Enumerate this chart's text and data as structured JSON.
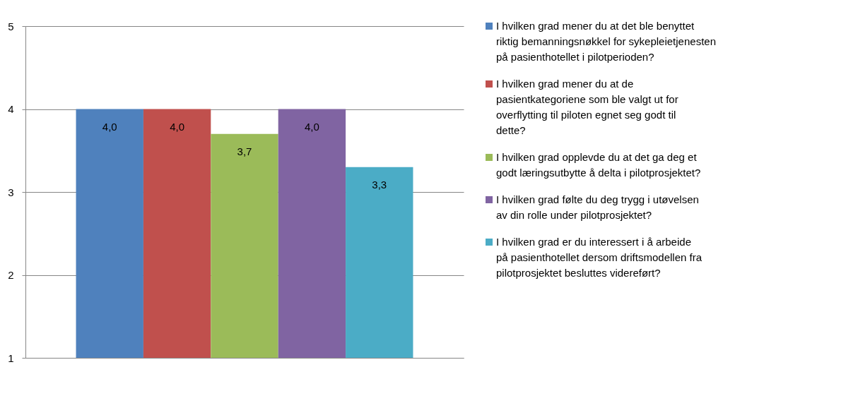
{
  "chart_data": {
    "type": "bar",
    "categories": [
      null
    ],
    "series": [
      {
        "name": "I hvilken grad mener du at det ble benyttet riktig bemanningsnøkkel for sykepleietjenesten på pasienthotellet i pilotperioden?",
        "color": "#4f81bd",
        "values": [
          4.0
        ],
        "value_labels": [
          "4,0"
        ]
      },
      {
        "name": "I hvilken grad mener du at de pasientkategoriene som ble valgt ut for overflytting til piloten egnet seg godt til dette?",
        "color": "#c0504d",
        "values": [
          4.0
        ],
        "value_labels": [
          "4,0"
        ]
      },
      {
        "name": "I hvilken grad opplevde du at det ga deg et godt læringsutbytte å delta i pilotprosjektet?",
        "color": "#9bbb59",
        "values": [
          3.7
        ],
        "value_labels": [
          "3,7"
        ]
      },
      {
        "name": "I hvilken grad følte du deg trygg i utøvelsen av din rolle under pilotprosjektet?",
        "color": "#8064a2",
        "values": [
          4.0
        ],
        "value_labels": [
          "4,0"
        ]
      },
      {
        "name": "I hvilken grad er du interessert i å arbeide på pasienthotellet dersom driftsmodellen fra pilotprosjektet besluttes videreført?",
        "color": "#4bacc6",
        "values": [
          3.3
        ],
        "value_labels": [
          "3,3"
        ]
      }
    ],
    "ylim": [
      1,
      5
    ],
    "yticks": [
      1,
      2,
      3,
      4,
      5
    ],
    "grid": "y",
    "legend": "right",
    "tick_labels": "y"
  }
}
